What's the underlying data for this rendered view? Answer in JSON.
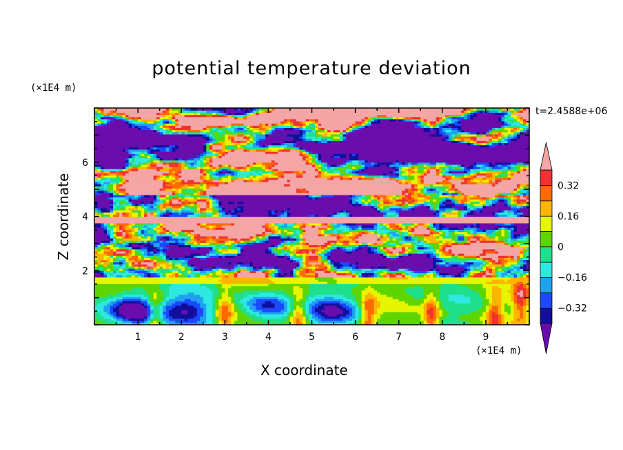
{
  "chart_data": {
    "type": "heatmap",
    "title": "potential temperature deviation",
    "xlabel": "X coordinate",
    "ylabel": "Z coordinate",
    "x_unit": "(×1E4 m)",
    "z_unit": "(×1E4 m)",
    "time_label": "t=2.4588e+06",
    "xlim": [
      0,
      10
    ],
    "ylim": [
      0,
      8
    ],
    "x_ticks": [
      "1",
      "2",
      "3",
      "4",
      "5",
      "6",
      "7",
      "8",
      "9"
    ],
    "z_ticks": [
      "2",
      "4",
      "6"
    ],
    "colorbar": {
      "labels": [
        "0.32",
        "0.16",
        "0",
        "−0.16",
        "−0.32"
      ],
      "label_values": [
        0.32,
        0.16,
        0,
        -0.16,
        -0.32
      ],
      "levels": [
        -0.4,
        -0.32,
        -0.24,
        -0.16,
        -0.08,
        0,
        0.08,
        0.16,
        0.24,
        0.32,
        0.4
      ],
      "colors": [
        "#6a0dad",
        "#120f9c",
        "#1a49ff",
        "#1ea2f0",
        "#2ee8e2",
        "#1ee08c",
        "#5fd500",
        "#e6f500",
        "#ffb400",
        "#ff6a00",
        "#f03232",
        "#f4a5a5"
      ],
      "extend": "both"
    },
    "field_description_regions": [
      {
        "z_range": [
          0,
          1.7
        ],
        "pattern": "convective cells",
        "value_range": [
          -0.4,
          0.32
        ]
      },
      {
        "z_range": [
          1.7,
          4.8
        ],
        "pattern": "turbulent mixed layers",
        "value_range": [
          -0.4,
          0.4
        ]
      },
      {
        "z_range": [
          4.8,
          8
        ],
        "pattern": "layered bands",
        "value_range": [
          -0.4,
          0.4
        ]
      }
    ]
  }
}
